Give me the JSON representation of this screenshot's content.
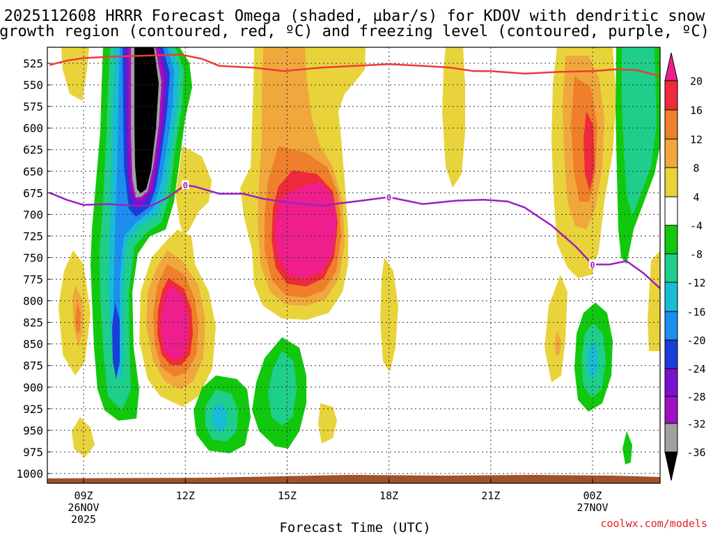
{
  "chart_data": {
    "type": "contour",
    "title_lines": [
      "2025112608 HRRR Forecast Omega (shaded, µbar/s) for KDOV with dendritic snow",
      "growth region (contoured, red, ºC) and freezing level (contoured, purple, ºC)"
    ],
    "xlabel": "Forecast Time (UTC)",
    "credit": "coolwx.com/models",
    "y_ticks": [
      525,
      550,
      575,
      600,
      625,
      650,
      675,
      700,
      725,
      750,
      775,
      800,
      825,
      850,
      875,
      900,
      925,
      950,
      975,
      1000
    ],
    "x_ticks": [
      {
        "hour": 9,
        "label": "09Z",
        "date": "26NOV",
        "year": "2025"
      },
      {
        "hour": 12,
        "label": "12Z"
      },
      {
        "hour": 15,
        "label": "15Z"
      },
      {
        "hour": 18,
        "label": "18Z"
      },
      {
        "hour": 21,
        "label": "21Z"
      },
      {
        "hour": 24,
        "label": "00Z",
        "date": "27NOV"
      }
    ],
    "x_range": [
      8,
      26
    ],
    "colorbar": {
      "ticks": [
        20,
        16,
        12,
        8,
        4,
        -4,
        -8,
        -12,
        -16,
        -20,
        -24,
        -28,
        -32,
        -36
      ],
      "colors": [
        "#ee1e8c",
        "#ee2a3c",
        "#ef7f2a",
        "#f0a83c",
        "#e9d33b",
        "#ffffff",
        "#12c80e",
        "#1ece8a",
        "#18bcd4",
        "#1d8ef0",
        "#1a3ed8",
        "#7a10d0",
        "#a010c0",
        "#a0a0a0",
        "#000000"
      ]
    },
    "dgz_line_label": "",
    "freezing_level": {
      "label": "0",
      "points": [
        [
          8.0,
          675
        ],
        [
          8.5,
          683
        ],
        [
          9.0,
          689
        ],
        [
          9.7,
          688
        ],
        [
          10.5,
          690
        ],
        [
          11.0,
          690
        ],
        [
          11.5,
          680
        ],
        [
          12.0,
          666
        ],
        [
          12.3,
          668
        ],
        [
          13.0,
          676
        ],
        [
          13.7,
          676
        ],
        [
          14.3,
          682
        ],
        [
          15.0,
          686
        ],
        [
          16.0,
          690
        ],
        [
          17.0,
          685
        ],
        [
          18.0,
          680
        ],
        [
          19.0,
          688
        ],
        [
          20.0,
          684
        ],
        [
          20.8,
          683
        ],
        [
          21.5,
          685
        ],
        [
          22.0,
          692
        ],
        [
          22.8,
          713
        ],
        [
          23.5,
          737
        ],
        [
          24.0,
          758
        ],
        [
          24.5,
          758
        ],
        [
          25.0,
          754
        ],
        [
          25.5,
          768
        ],
        [
          26.0,
          786
        ]
      ],
      "label_points": [
        [
          12.0,
          666
        ],
        [
          18.0,
          680
        ],
        [
          24.0,
          758
        ]
      ]
    },
    "dgz_top": {
      "points": [
        [
          8.0,
          527
        ],
        [
          8.5,
          522
        ],
        [
          9.0,
          519
        ],
        [
          10.0,
          517
        ],
        [
          11.0,
          516
        ],
        [
          11.9,
          515
        ],
        [
          12.5,
          520
        ],
        [
          13.0,
          528
        ],
        [
          14.0,
          530
        ],
        [
          14.9,
          534
        ],
        [
          16.0,
          530
        ],
        [
          17.0,
          528
        ],
        [
          18.0,
          526
        ],
        [
          19.0,
          528
        ],
        [
          19.8,
          530
        ],
        [
          20.5,
          534
        ],
        [
          21.0,
          534
        ],
        [
          22.0,
          537
        ],
        [
          23.0,
          535
        ],
        [
          24.0,
          534
        ],
        [
          24.7,
          532
        ],
        [
          25.3,
          533
        ],
        [
          26.0,
          540
        ]
      ]
    }
  }
}
